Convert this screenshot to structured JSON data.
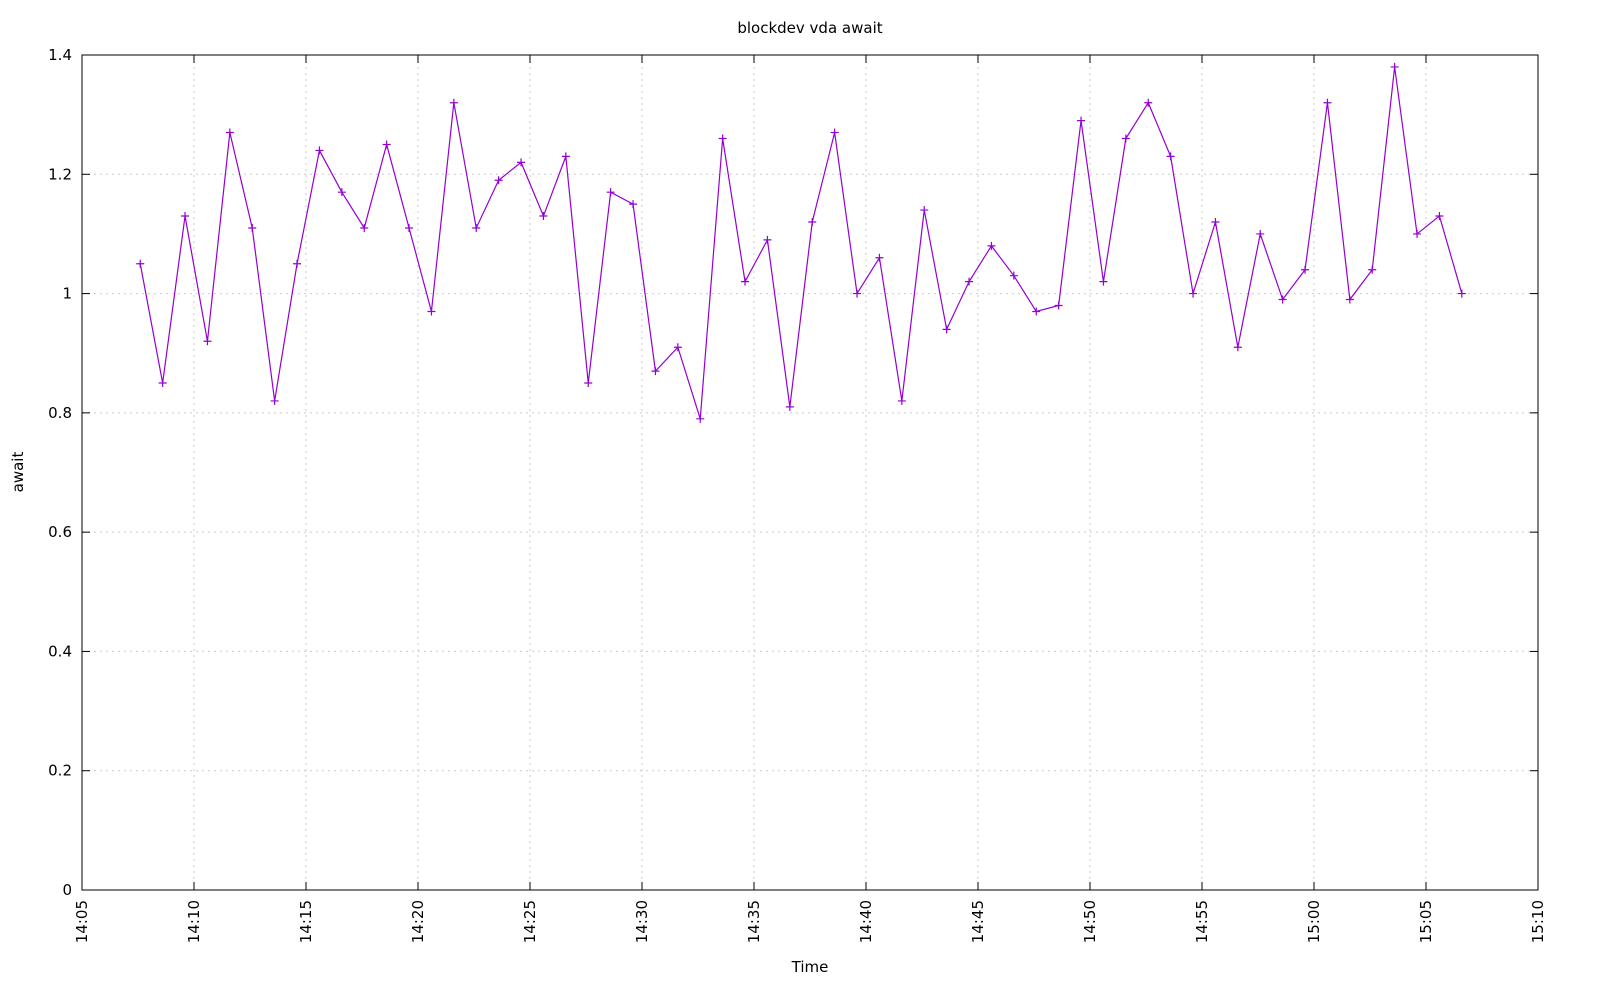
{
  "chart_data": {
    "type": "line",
    "title": "blockdev vda await",
    "xlabel": "Time",
    "ylabel": "await",
    "x": [
      847.6,
      848.6,
      849.6,
      850.6,
      851.6,
      852.6,
      853.6,
      854.6,
      855.6,
      856.6,
      857.6,
      858.6,
      859.6,
      860.6,
      861.6,
      862.6,
      863.6,
      864.6,
      865.6,
      866.6,
      867.6,
      868.6,
      869.6,
      870.6,
      871.6,
      872.6,
      873.6,
      874.6,
      875.6,
      876.6,
      877.6,
      878.6,
      879.6,
      880.6,
      881.6,
      882.6,
      883.6,
      884.6,
      885.6,
      886.6,
      887.6,
      888.6,
      889.6,
      890.6,
      891.6,
      892.6,
      893.6,
      894.6,
      895.6,
      896.6,
      897.6,
      898.6,
      899.6,
      900.6,
      901.6,
      902.6,
      903.6,
      904.6,
      905.6,
      906.6
    ],
    "values": [
      1.05,
      0.85,
      1.13,
      0.92,
      1.27,
      1.11,
      0.82,
      1.05,
      1.24,
      1.17,
      1.11,
      1.25,
      1.11,
      0.97,
      1.32,
      1.11,
      1.19,
      1.22,
      1.13,
      1.23,
      0.85,
      1.17,
      1.15,
      0.87,
      0.91,
      0.79,
      1.26,
      1.02,
      1.09,
      0.81,
      1.12,
      1.27,
      1.0,
      1.06,
      0.82,
      1.14,
      0.94,
      1.02,
      1.08,
      1.03,
      0.97,
      0.98,
      1.29,
      1.02,
      1.26,
      1.32,
      1.23,
      1.0,
      1.12,
      0.91,
      1.1,
      0.99,
      1.04,
      1.32,
      0.99,
      1.04,
      1.38,
      1.1,
      1.13,
      1.0
    ],
    "color": "#9400d3",
    "xlim": [
      845,
      910
    ],
    "xticks": [
      {
        "value": 845,
        "label": "14:05"
      },
      {
        "value": 850,
        "label": "14:10"
      },
      {
        "value": 855,
        "label": "14:15"
      },
      {
        "value": 860,
        "label": "14:20"
      },
      {
        "value": 865,
        "label": "14:25"
      },
      {
        "value": 870,
        "label": "14:30"
      },
      {
        "value": 875,
        "label": "14:35"
      },
      {
        "value": 880,
        "label": "14:40"
      },
      {
        "value": 885,
        "label": "14:45"
      },
      {
        "value": 890,
        "label": "14:50"
      },
      {
        "value": 895,
        "label": "14:55"
      },
      {
        "value": 900,
        "label": "15:00"
      },
      {
        "value": 905,
        "label": "15:05"
      },
      {
        "value": 910,
        "label": "15:10"
      }
    ],
    "ylim": [
      0,
      1.4
    ],
    "yticks": [
      0,
      0.2,
      0.4,
      0.6,
      0.8,
      1,
      1.2,
      1.4
    ],
    "grid": true
  }
}
